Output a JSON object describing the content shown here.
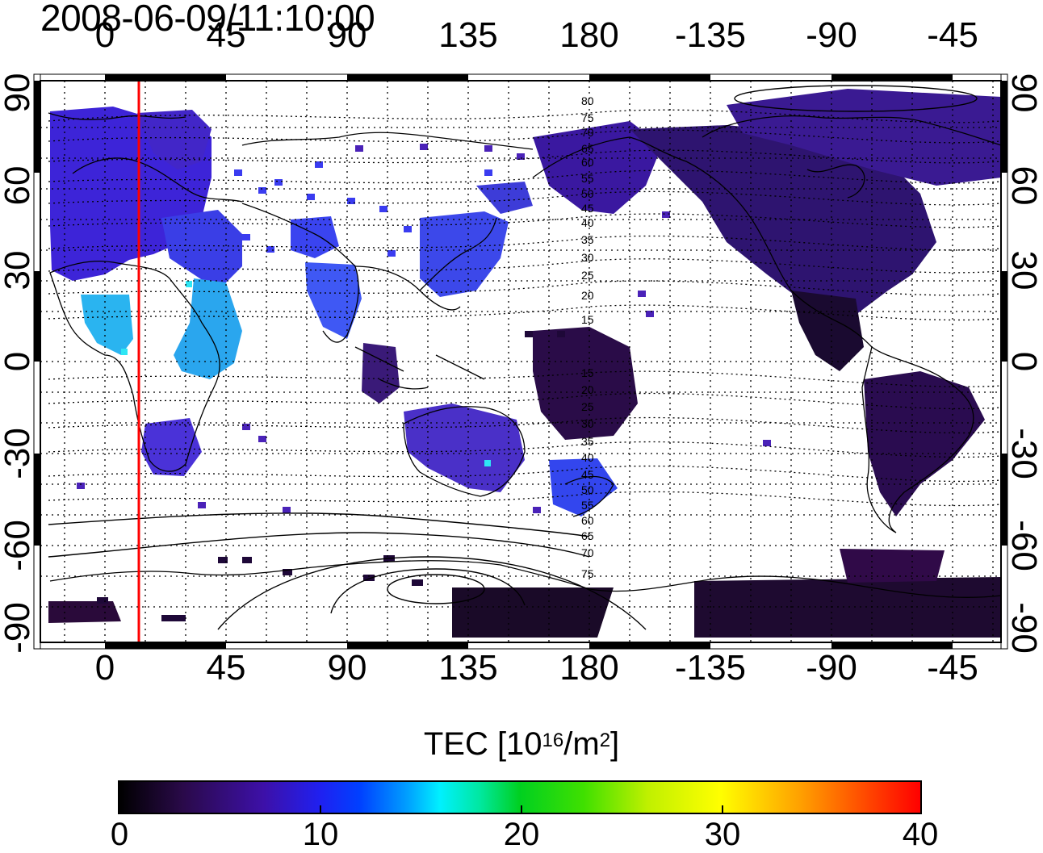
{
  "timestamp": "2008-06-09/11:10:00",
  "x_ticks": [
    "0",
    "45",
    "90",
    "135",
    "180",
    "-135",
    "-90",
    "-45"
  ],
  "y_ticks": [
    "90",
    "60",
    "30",
    "0",
    "-30",
    "-60",
    "-90"
  ],
  "contour_labels_north": [
    "80",
    "75",
    "70",
    "65",
    "60",
    "55",
    "50",
    "45",
    "40",
    "35",
    "30",
    "25",
    "20",
    "15"
  ],
  "contour_labels_south": [
    "15",
    "20",
    "25",
    "30",
    "35",
    "40",
    "45",
    "50",
    "55",
    "60",
    "65",
    "70",
    "75"
  ],
  "colorbar": {
    "title": "TEC  [10",
    "title_sup1": "16",
    "title_mid": "/m",
    "title_sup2": "2",
    "title_end": "]",
    "ticks": [
      "0",
      "10",
      "20",
      "30",
      "40"
    ],
    "range": [
      0,
      40
    ]
  },
  "terminator_longitude": 13,
  "colors": {
    "terminator": "#ff0000",
    "background": "#ffffff"
  }
}
